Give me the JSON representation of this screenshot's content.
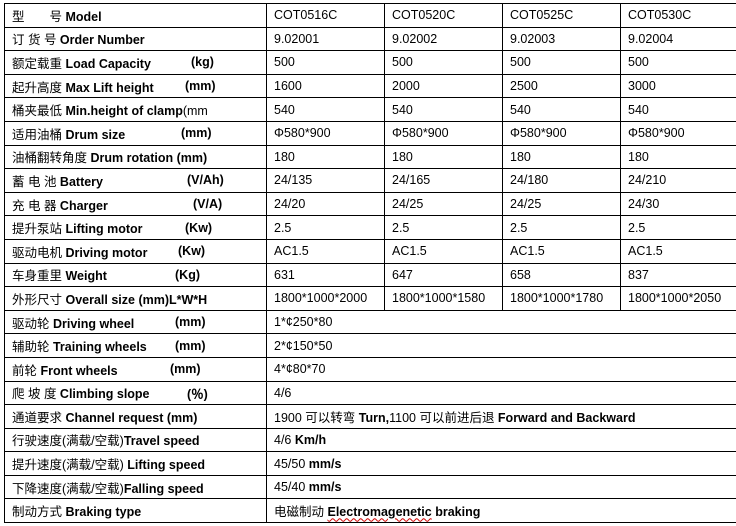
{
  "rows": [
    {
      "cn": "型　　号 ",
      "en": "Model",
      "unit": "",
      "values": [
        "COT0516C",
        "COT0520C",
        "COT0525C",
        "COT0530C"
      ]
    },
    {
      "cn": "订 货 号 ",
      "en": "Order Number",
      "unit": "",
      "values": [
        "9.02001",
        "9.02002",
        "9.02003",
        "9.02004"
      ]
    },
    {
      "cn": "额定载重  ",
      "en": "Load Capacity",
      "unit": "(kg)",
      "values": [
        "500",
        "500",
        "500",
        "500"
      ]
    },
    {
      "cn": "起升高度 ",
      "en": "Max Lift height",
      "unit": "(mm)",
      "values": [
        "1600",
        "2000",
        "2500",
        "3000"
      ]
    },
    {
      "cn": "桶夹最低 ",
      "en": "Min.height of clamp",
      "en2": "(mm",
      "unit": "",
      "values": [
        "540",
        "540",
        "540",
        "540"
      ]
    },
    {
      "cn": "适用油桶 ",
      "en": "Drum size",
      "unit": "(mm)",
      "values": [
        "Φ580*900",
        "Φ580*900",
        "Φ580*900",
        "Φ580*900"
      ]
    },
    {
      "cn": "油桶翻转角度 ",
      "en": "Drum rotation (mm)",
      "unit": "",
      "values": [
        "180",
        "180",
        "180",
        "180"
      ]
    },
    {
      "cn": "蓄 电 池  ",
      "en": "Battery",
      "unit": "(V/Ah)",
      "values": [
        "24/135",
        "24/165",
        "24/180",
        "24/210"
      ]
    },
    {
      "cn": "充 电 器  ",
      "en": "Charger",
      "unit": "(V/A)",
      "values": [
        "24/20",
        "24/25",
        "24/25",
        "24/30"
      ]
    },
    {
      "cn": "提升泵站 ",
      "en": "Lifting motor",
      "unit": "(Kw)",
      "values": [
        "2.5",
        "2.5",
        "2.5",
        "2.5"
      ]
    },
    {
      "cn": "驱动电机 ",
      "en": "Driving motor",
      "unit": "(Kw)",
      "values": [
        "AC1.5",
        "AC1.5",
        "AC1.5",
        "AC1.5"
      ]
    },
    {
      "cn": "车身重里 ",
      "en": "Weight",
      "unit": "(Kg)",
      "values": [
        "631",
        "647",
        "658",
        "837"
      ]
    },
    {
      "cn": "外形尺寸 ",
      "en": "Overall size (mm)L*W*H",
      "unit": "",
      "values": [
        "1800*1000*2000",
        "1800*1000*1580",
        "1800*1000*1780",
        "1800*1000*2050"
      ]
    },
    {
      "cn": "驱动轮  ",
      "en": "Driving wheel",
      "unit": "(mm)",
      "span": [
        "1*¢250*80"
      ]
    },
    {
      "cn": "辅助轮  ",
      "en": "Training wheels",
      "unit": "(mm)",
      "span": [
        "2*¢150*50"
      ]
    },
    {
      "cn": "前轮 ",
      "en": "Front wheels",
      "unit": "(mm)",
      "span": [
        "4*¢80*70"
      ]
    },
    {
      "cn": "爬 坡 度  ",
      "en": "Climbing slope",
      "unit": "(％)",
      "span": [
        "4/6"
      ]
    },
    {
      "cn": "通道要求  ",
      "en": "Channel request (mm)",
      "unit": "",
      "span": [
        "1900 可以转弯 ",
        {
          "b": "Turn,"
        },
        "1100 可以前进后退 ",
        {
          "b": "Forward and Backward"
        }
      ]
    },
    {
      "cn": "行驶速度(满载/空载)",
      "en": "Travel speed",
      "unit": "",
      "span": [
        "4/6 ",
        {
          "b": "Km/h"
        }
      ]
    },
    {
      "cn": "提升速度(满载/空载) ",
      "en": "Lifting speed",
      "unit": "",
      "span": [
        "45/50 ",
        {
          "b": "mm/s"
        }
      ]
    },
    {
      "cn": "下降速度(满载/空载)",
      "en": "Falling speed",
      "unit": "",
      "span": [
        "45/40 ",
        {
          "b": "mm/s"
        }
      ]
    },
    {
      "cn": "制动方式 ",
      "en": "Braking type",
      "unit": "",
      "span": [
        "电磁制动 ",
        {
          "b": "Electromagenetic",
          "squig": true
        },
        " ",
        {
          "b": "braking"
        }
      ]
    }
  ]
}
